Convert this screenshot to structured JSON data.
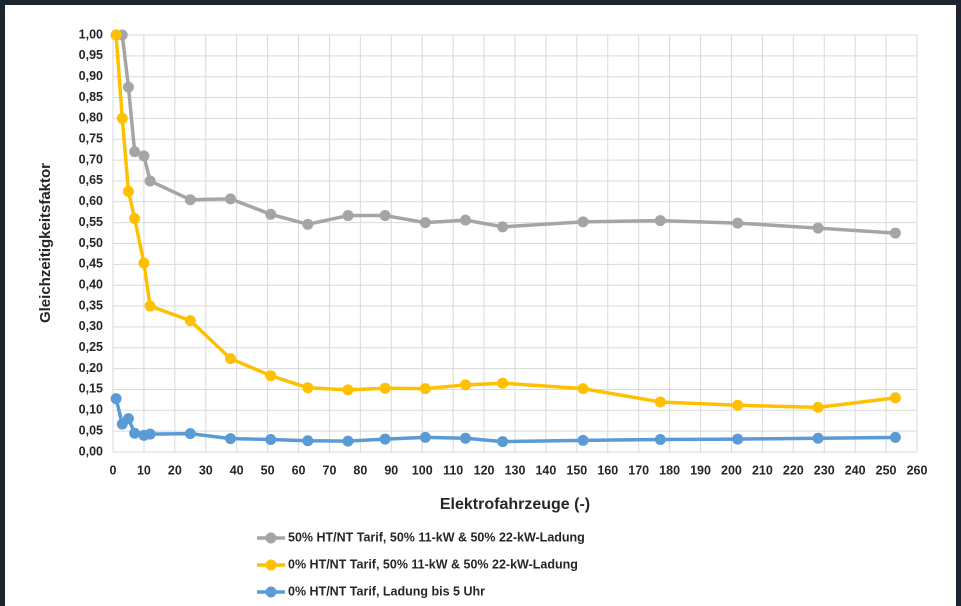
{
  "chart_data": {
    "type": "line",
    "y_label": "Gleichzeitigkeitsfaktor",
    "x_label": "Elektrofahrzeuge (-)",
    "xlim": [
      0,
      260
    ],
    "xticks": [
      0,
      10,
      20,
      30,
      40,
      50,
      60,
      70,
      80,
      90,
      100,
      110,
      120,
      130,
      140,
      150,
      160,
      170,
      180,
      190,
      200,
      210,
      220,
      230,
      240,
      250,
      260
    ],
    "ylim": [
      0,
      1
    ],
    "yticks": [
      {
        "value": 0,
        "label": "0,00"
      },
      {
        "value": 0.05,
        "label": "0,05"
      },
      {
        "value": 0.1,
        "label": "0,10"
      },
      {
        "value": 0.15,
        "label": "0,15"
      },
      {
        "value": 0.2,
        "label": "0,20"
      },
      {
        "value": 0.25,
        "label": "0,25"
      },
      {
        "value": 0.3,
        "label": "0,30"
      },
      {
        "value": 0.35,
        "label": "0,35"
      },
      {
        "value": 0.4,
        "label": "0,40"
      },
      {
        "value": 0.45,
        "label": "0,45"
      },
      {
        "value": 0.5,
        "label": "0,50"
      },
      {
        "value": 0.55,
        "label": "0,55"
      },
      {
        "value": 0.6,
        "label": "0,60"
      },
      {
        "value": 0.65,
        "label": "0,65"
      },
      {
        "value": 0.7,
        "label": "0,70"
      },
      {
        "value": 0.75,
        "label": "0,75"
      },
      {
        "value": 0.8,
        "label": "0,80"
      },
      {
        "value": 0.85,
        "label": "0,85"
      },
      {
        "value": 0.9,
        "label": "0,90"
      },
      {
        "value": 0.95,
        "label": "0,95"
      },
      {
        "value": 1,
        "label": "1,00"
      }
    ],
    "grid": true,
    "legend": "bottom",
    "x": [
      1,
      3,
      5,
      7,
      10,
      12,
      25,
      38,
      51,
      63,
      76,
      88,
      101,
      114,
      126,
      152,
      177,
      202,
      228,
      253
    ],
    "series": [
      {
        "name": "50% HT/NT Tarif, 50% 11-kW & 50% 22-kW-Ladung",
        "color": "#a5a5a5",
        "values": [
          1.0,
          1.0,
          0.875,
          0.72,
          0.71,
          0.65,
          0.605,
          0.607,
          0.57,
          0.546,
          0.567,
          0.567,
          0.55,
          0.556,
          0.54,
          0.552,
          0.555,
          0.549,
          0.537,
          0.525
        ]
      },
      {
        "name": "0% HT/NT Tarif, 50% 11-kW & 50% 22-kW-Ladung",
        "color": "#ffc000",
        "values": [
          1.0,
          0.8,
          0.625,
          0.56,
          0.453,
          0.35,
          0.315,
          0.224,
          0.183,
          0.154,
          0.149,
          0.153,
          0.152,
          0.161,
          0.165,
          0.152,
          0.12,
          0.112,
          0.107,
          0.13
        ]
      },
      {
        "name": "0% HT/NT Tarif, Ladung bis 5 Uhr",
        "color": "#5b9bd5",
        "values": [
          0.128,
          0.067,
          0.08,
          0.045,
          0.04,
          0.043,
          0.044,
          0.032,
          0.03,
          0.027,
          0.026,
          0.031,
          0.035,
          0.033,
          0.025,
          0.028,
          0.03,
          0.031,
          0.033,
          0.035
        ]
      }
    ]
  }
}
